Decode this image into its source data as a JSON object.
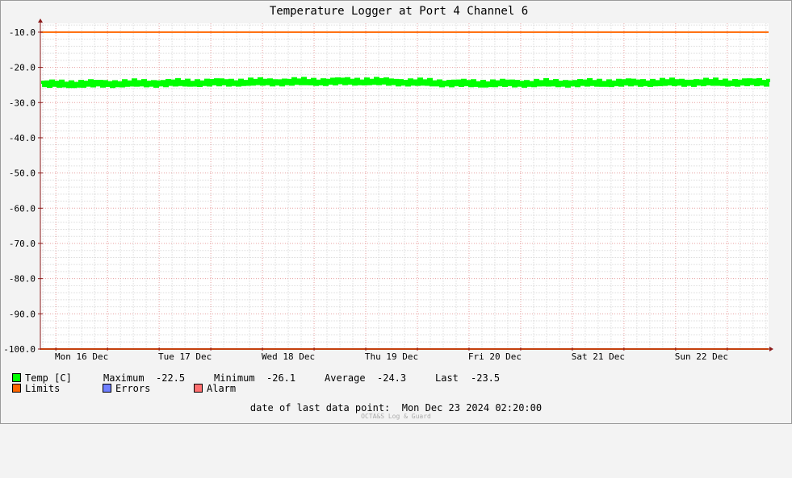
{
  "window": {
    "title": "Temperature Logger at Port 4 Channel 6"
  },
  "chart_data": {
    "type": "line",
    "title": "Temperature Logger at Port 4 Channel 6",
    "ylim": [
      -100,
      -7.5
    ],
    "yticks": [
      -10,
      -20,
      -30,
      -40,
      -50,
      -60,
      -70,
      -80,
      -90,
      -100
    ],
    "ytick_labels": [
      "-10.0",
      "-20.0",
      "-30.0",
      "-40.0",
      "-50.0",
      "-60.0",
      "-70.0",
      "-80.0",
      "-90.0",
      "-100.0"
    ],
    "x_days": [
      "Mon 16 Dec",
      "Tue 17 Dec",
      "Wed 18 Dec",
      "Thu 19 Dec",
      "Fri 20 Dec",
      "Sat 21 Dec",
      "Sun 22 Dec"
    ],
    "xlim_days": [
      -0.15,
      6.9
    ],
    "grid": true,
    "series": [
      {
        "name": "Temp [C]",
        "color": "#00ff00",
        "style": "noisy band",
        "band": [
          -25.6,
          -23.6
        ],
        "trend": [
          {
            "day": -0.15,
            "value": -24.8
          },
          {
            "day": 1.0,
            "value": -24.5
          },
          {
            "day": 2.0,
            "value": -24.2
          },
          {
            "day": 3.0,
            "value": -24.0
          },
          {
            "day": 4.0,
            "value": -24.6
          },
          {
            "day": 5.0,
            "value": -24.5
          },
          {
            "day": 6.0,
            "value": -24.3
          },
          {
            "day": 6.9,
            "value": -24.3
          }
        ]
      },
      {
        "name": "Limits",
        "color": "#ff6600",
        "upper": -10.0,
        "lower": -100.0
      }
    ]
  },
  "legend": {
    "temp": {
      "label": "Temp [C]",
      "color": "#00ff00"
    },
    "limits": {
      "label": "Limits",
      "color": "#ff6600"
    },
    "errors": {
      "label": "Errors",
      "color": "#6f7fff"
    },
    "alarm": {
      "label": "Alarm",
      "color": "#ff7070"
    }
  },
  "stats": {
    "maximum_label": "Maximum",
    "maximum_value": "-22.5",
    "minimum_label": "Minimum",
    "minimum_value": "-26.1",
    "average_label": "Average",
    "average_value": "-24.3",
    "last_label": "Last",
    "last_value": "-23.5"
  },
  "footer": {
    "last_point_label": "date of last data point:",
    "last_point_value": "Mon Dec 23 2024 02:20:00",
    "watermark": "OCTA&S Log & Guard"
  }
}
